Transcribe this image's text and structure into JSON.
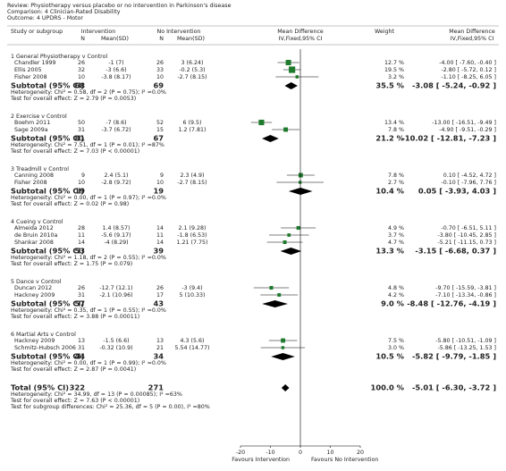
{
  "header": {
    "review": "Review:  Physiotherapy versus placebo or no intervention in Parkinson's disease",
    "comparison": "Comparison:  4 Clinician-Rated Disability",
    "outcome": "Outcome:  4 UPDRS - Motor"
  },
  "columns": {
    "study": "Study or subgroup",
    "intervention": "Intervention",
    "int_n": "N",
    "int_mean": "Mean(SD)",
    "no_intervention": "No Intervention",
    "ni_n": "N",
    "ni_mean": "Mean(SD)",
    "md": "Mean Difference",
    "md_method": "IV,Fixed,95% CI",
    "weight": "Weight",
    "md2": "Mean Difference",
    "md2_method": "IV,Fixed,95% CI"
  },
  "groups": [
    {
      "label": "1 General Physiotherapy v Control",
      "studies": [
        {
          "name": "Chandler 1999",
          "int_n": 26,
          "int_mean": "-1 (7)",
          "ni_n": 26,
          "ni_mean": "3 (6.24)",
          "weight": 12.7,
          "weight_label": "12.7 %",
          "md": -4.0,
          "lo": -7.6,
          "hi": -0.4,
          "effect": "-4.00 [ -7.60, -0.40 ]"
        },
        {
          "name": "Ellis 2005",
          "int_n": 32,
          "int_mean": "-3 (6.6)",
          "ni_n": 33,
          "ni_mean": "-0.2 (5.3)",
          "weight": 19.5,
          "weight_label": "19.5 %",
          "md": -2.8,
          "lo": -5.72,
          "hi": 0.12,
          "effect": "-2.80 [ -5.72, 0.12 ]"
        },
        {
          "name": "Fisher 2008",
          "int_n": 10,
          "int_mean": "-3.8 (8.17)",
          "ni_n": 10,
          "ni_mean": "-2.7 (8.15)",
          "weight": 3.2,
          "weight_label": "3.2 %",
          "md": -1.1,
          "lo": -8.25,
          "hi": 6.05,
          "effect": "-1.10 [ -8.25, 6.05 ]"
        }
      ],
      "subtotal": {
        "label": "Subtotal (95% CI)",
        "int_n": 68,
        "ni_n": 69,
        "weight": 35.5,
        "weight_label": "35.5 %",
        "md": -3.08,
        "lo": -5.24,
        "hi": -0.92,
        "effect": "-3.08 [ -5.24, -0.92 ]"
      },
      "heterogeneity": "Heterogeneity: Chi² = 0.58, df = 2 (P = 0.75); I² =0.0%",
      "test": "Test for overall effect: Z = 2.79 (P = 0.0053)"
    },
    {
      "label": "2 Exercise v Control",
      "studies": [
        {
          "name": "Boehm 2011",
          "int_n": 50,
          "int_mean": "-7 (8.6)",
          "ni_n": 52,
          "ni_mean": "6 (9.5)",
          "weight": 13.4,
          "weight_label": "13.4 %",
          "md": -13.0,
          "lo": -16.51,
          "hi": -9.49,
          "effect": "-13.00 [ -16.51, -9.49 ]"
        },
        {
          "name": "Sage 2009a",
          "int_n": 31,
          "int_mean": "-3.7 (6.72)",
          "ni_n": 15,
          "ni_mean": "1.2 (7.81)",
          "weight": 7.8,
          "weight_label": "7.8 %",
          "md": -4.9,
          "lo": -9.51,
          "hi": -0.29,
          "effect": "-4.90 [ -9.51, -0.29 ]"
        }
      ],
      "subtotal": {
        "label": "Subtotal (95% CI)",
        "int_n": 81,
        "ni_n": 67,
        "weight": 21.2,
        "weight_label": "21.2 %",
        "md": -10.02,
        "lo": -12.81,
        "hi": -7.23,
        "effect": "-10.02 [ -12.81, -7.23 ]"
      },
      "heterogeneity": "Heterogeneity: Chi² = 7.51, df = 1 (P = 0.01); I² =87%",
      "test": "Test for overall effect: Z = 7.03 (P < 0.00001)"
    },
    {
      "label": "3 Treadmill v Control",
      "studies": [
        {
          "name": "Canning 2008",
          "int_n": 9,
          "int_mean": "2.4 (5.1)",
          "ni_n": 9,
          "ni_mean": "2.3 (4.9)",
          "weight": 7.8,
          "weight_label": "7.8 %",
          "md": 0.1,
          "lo": -4.52,
          "hi": 4.72,
          "effect": "0.10 [ -4.52, 4.72 ]"
        },
        {
          "name": "Fisher 2008",
          "int_n": 10,
          "int_mean": "-2.8 (9.72)",
          "ni_n": 10,
          "ni_mean": "-2.7 (8.15)",
          "weight": 2.7,
          "weight_label": "2.7 %",
          "md": -0.1,
          "lo": -7.96,
          "hi": 7.76,
          "effect": "-0.10 [ -7.96, 7.76 ]"
        }
      ],
      "subtotal": {
        "label": "Subtotal (95% CI)",
        "int_n": 19,
        "ni_n": 19,
        "weight": 10.4,
        "weight_label": "10.4 %",
        "md": 0.05,
        "lo": -3.93,
        "hi": 4.03,
        "effect": "0.05 [ -3.93, 4.03 ]"
      },
      "heterogeneity": "Heterogeneity: Chi² = 0.00, df = 1 (P = 0.97); I² =0.0%",
      "test": "Test for overall effect: Z = 0.02 (P = 0.98)"
    },
    {
      "label": "4 Cueing v Control",
      "studies": [
        {
          "name": "Almeida 2012",
          "int_n": 28,
          "int_mean": "1.4 (8.57)",
          "ni_n": 14,
          "ni_mean": "2.1 (9.28)",
          "weight": 4.9,
          "weight_label": "4.9 %",
          "md": -0.7,
          "lo": -6.51,
          "hi": 5.11,
          "effect": "-0.70 [ -6.51, 5.11 ]"
        },
        {
          "name": "de Bruin 2010a",
          "int_n": 11,
          "int_mean": "-5.6 (9.17)",
          "ni_n": 11,
          "ni_mean": "-1.8 (6.53)",
          "weight": 3.7,
          "weight_label": "3.7 %",
          "md": -3.8,
          "lo": -10.45,
          "hi": 2.85,
          "effect": "-3.80 [ -10.45, 2.85 ]"
        },
        {
          "name": "Shankar 2008",
          "int_n": 14,
          "int_mean": "-4 (8.29)",
          "ni_n": 14,
          "ni_mean": "1.21 (7.75)",
          "weight": 4.7,
          "weight_label": "4.7 %",
          "md": -5.21,
          "lo": -11.15,
          "hi": 0.73,
          "effect": "-5.21 [ -11.15, 0.73 ]"
        }
      ],
      "subtotal": {
        "label": "Subtotal (95% CI)",
        "int_n": 53,
        "ni_n": 39,
        "weight": 13.3,
        "weight_label": "13.3 %",
        "md": -3.15,
        "lo": -6.68,
        "hi": 0.37,
        "effect": "-3.15 [ -6.68, 0.37 ]"
      },
      "heterogeneity": "Heterogeneity: Chi² = 1.18, df = 2 (P = 0.55); I² =0.0%",
      "test": "Test for overall effect: Z = 1.75 (P = 0.079)"
    },
    {
      "label": "5 Dance v Control",
      "studies": [
        {
          "name": "Duncan 2012",
          "int_n": 26,
          "int_mean": "-12.7 (12.1)",
          "ni_n": 26,
          "ni_mean": "-3 (9.4)",
          "weight": 4.8,
          "weight_label": "4.8 %",
          "md": -9.7,
          "lo": -15.59,
          "hi": -3.81,
          "effect": "-9.70 [ -15.59, -3.81 ]"
        },
        {
          "name": "Hackney 2009",
          "int_n": 31,
          "int_mean": "-2.1 (10.96)",
          "ni_n": 17,
          "ni_mean": "5 (10.33)",
          "weight": 4.2,
          "weight_label": "4.2 %",
          "md": -7.1,
          "lo": -13.34,
          "hi": -0.86,
          "effect": "-7.10 [ -13.34, -0.86 ]"
        }
      ],
      "subtotal": {
        "label": "Subtotal (95% CI)",
        "int_n": 57,
        "ni_n": 43,
        "weight": 9.0,
        "weight_label": "9.0 %",
        "md": -8.48,
        "lo": -12.76,
        "hi": -4.19,
        "effect": "-8.48 [ -12.76, -4.19 ]"
      },
      "heterogeneity": "Heterogeneity: Chi² = 0.35, df = 1 (P = 0.55); I² =0.0%",
      "test": "Test for overall effect: Z = 3.88 (P = 0.00011)"
    },
    {
      "label": "6 Martial Arts v Control",
      "studies": [
        {
          "name": "Hackney 2009",
          "int_n": 13,
          "int_mean": "-1.5 (6.6)",
          "ni_n": 13,
          "ni_mean": "4.3 (5.6)",
          "weight": 7.5,
          "weight_label": "7.5 %",
          "md": -5.8,
          "lo": -10.51,
          "hi": -1.09,
          "effect": "-5.80 [ -10.51, -1.09 ]"
        },
        {
          "name": "Schmitz-Hubsch 2006",
          "int_n": 31,
          "int_mean": "-0.32 (10.9)",
          "ni_n": 21,
          "ni_mean": "5.54 (14.77)",
          "weight": 3.0,
          "weight_label": "3.0 %",
          "md": -5.86,
          "lo": -13.25,
          "hi": 1.53,
          "effect": "-5.86 [ -13.25, 1.53 ]"
        }
      ],
      "subtotal": {
        "label": "Subtotal (95% CI)",
        "int_n": 44,
        "ni_n": 34,
        "weight": 10.5,
        "weight_label": "10.5 %",
        "md": -5.82,
        "lo": -9.79,
        "hi": -1.85,
        "effect": "-5.82 [ -9.79, -1.85 ]"
      },
      "heterogeneity": "Heterogeneity: Chi² = 0.00, df = 1 (P = 0.99); I² =0.0%",
      "test": "Test for overall effect: Z = 2.87 (P = 0.0041)"
    }
  ],
  "total": {
    "label": "Total (95% CI)",
    "int_n": 322,
    "ni_n": 271,
    "weight": 100.0,
    "weight_label": "100.0 %",
    "md": -5.01,
    "lo": -6.3,
    "hi": -3.72,
    "effect": "-5.01 [ -6.30, -3.72 ]",
    "heterogeneity": "Heterogeneity: Chi² = 34.99, df = 13 (P = 0.00085); I² =63%",
    "test": "Test for overall effect: Z = 7.63 (P < 0.00001)",
    "subgroup_test": "Test for subgroup differences: Chi² = 25.36, df = 5 (P = 0.00), I² =80%"
  },
  "axis": {
    "xlim": [
      -20,
      20
    ],
    "xticks": [
      -20,
      -10,
      0,
      10,
      20
    ],
    "left_label": "Favours Intervention",
    "right_label": "Favours No Intervention"
  }
}
